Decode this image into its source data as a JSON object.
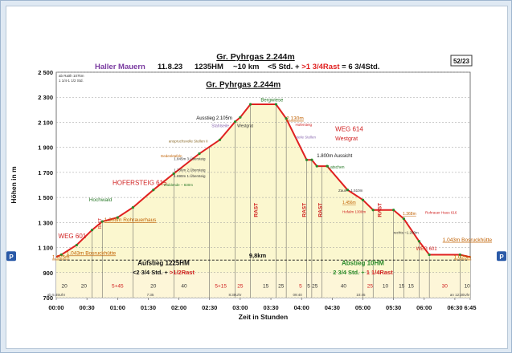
{
  "page_number": "52/23",
  "header": {
    "title": "Gr. Pyhrgas  2.244m",
    "group": "Haller Mauern",
    "date": "11.8.23",
    "hm": "1235HM",
    "dist": "~10 km",
    "time_prefix": "<5 Std. + ",
    "rast": ">1 3/4Rast",
    "time_suffix": " = 6 3/4Std."
  },
  "chart_data": {
    "type": "area",
    "title": "Gr. Pyhrgas 2.244m",
    "xlabel": "Zeit in Stunden",
    "ylabel": "Höhen in m",
    "xlim": [
      0,
      405
    ],
    "ylim": [
      700,
      2500
    ],
    "x_ticks": [
      {
        "t": 0,
        "label": "00:00"
      },
      {
        "t": 30,
        "label": "00:30"
      },
      {
        "t": 60,
        "label": "01:00"
      },
      {
        "t": 90,
        "label": "01:30"
      },
      {
        "t": 120,
        "label": "02:00"
      },
      {
        "t": 150,
        "label": "02:30"
      },
      {
        "t": 180,
        "label": "03:00"
      },
      {
        "t": 210,
        "label": "03:30"
      },
      {
        "t": 240,
        "label": "04:00"
      },
      {
        "t": 270,
        "label": "04:30"
      },
      {
        "t": 300,
        "label": "05:00"
      },
      {
        "t": 330,
        "label": "05:30"
      },
      {
        "t": 360,
        "label": "06:00"
      },
      {
        "t": 390,
        "label": "06:30"
      },
      {
        "t": 405,
        "label": "6:45"
      }
    ],
    "y_ticks": [
      {
        "v": 700,
        "label": "700"
      },
      {
        "v": 900,
        "label": "900"
      },
      {
        "v": 1100,
        "label": "1 100"
      },
      {
        "v": 1300,
        "label": "1 300"
      },
      {
        "v": 1500,
        "label": "1 500"
      },
      {
        "v": 1700,
        "label": "1 700"
      },
      {
        "v": 1900,
        "label": "1 900"
      },
      {
        "v": 2100,
        "label": "2 100"
      },
      {
        "v": 2300,
        "label": "2 300"
      },
      {
        "v": 2500,
        "label": "2 500"
      }
    ],
    "profile": [
      {
        "t": 0,
        "h": 1025
      },
      {
        "t": 5,
        "h": 1043
      },
      {
        "t": 20,
        "h": 1120
      },
      {
        "t": 35,
        "h": 1240
      },
      {
        "t": 45,
        "h": 1308
      },
      {
        "t": 60,
        "h": 1340
      },
      {
        "t": 75,
        "h": 1420
      },
      {
        "t": 95,
        "h": 1560
      },
      {
        "t": 115,
        "h": 1690
      },
      {
        "t": 140,
        "h": 1850
      },
      {
        "t": 160,
        "h": 1960
      },
      {
        "t": 175,
        "h": 2105
      },
      {
        "t": 180,
        "h": 2140
      },
      {
        "t": 190,
        "h": 2244
      },
      {
        "t": 215,
        "h": 2244
      },
      {
        "t": 225,
        "h": 2130
      },
      {
        "t": 245,
        "h": 1800
      },
      {
        "t": 250,
        "h": 1800
      },
      {
        "t": 255,
        "h": 1750
      },
      {
        "t": 265,
        "h": 1750
      },
      {
        "t": 285,
        "h": 1560
      },
      {
        "t": 300,
        "h": 1480
      },
      {
        "t": 310,
        "h": 1400
      },
      {
        "t": 330,
        "h": 1400
      },
      {
        "t": 340,
        "h": 1330
      },
      {
        "t": 355,
        "h": 1150
      },
      {
        "t": 365,
        "h": 1043
      },
      {
        "t": 395,
        "h": 1043
      },
      {
        "t": 405,
        "h": 1025
      }
    ],
    "legend": "none",
    "grid": true
  },
  "annotations": [
    {
      "t": 2,
      "h": 1175,
      "text": "WEG 601",
      "color": "#d02020",
      "size": 8
    },
    {
      "t": 10,
      "h": 1043,
      "text": "1.043m Bosruckhütte",
      "color": "#c06000",
      "size": 6.5,
      "u": true
    },
    {
      "t": 47,
      "h": 1308,
      "text": "1.308m Rohrauerhaus",
      "color": "#c06000",
      "size": 6.5,
      "u": true
    },
    {
      "t": 32,
      "h": 1470,
      "text": "Hochwald",
      "color": "#2a7a2a",
      "size": 6.5
    },
    {
      "t": 55,
      "h": 1600,
      "text": "HOFERSTEIG 615",
      "color": "#d02020",
      "size": 8
    },
    {
      "t": 102,
      "h": 1820,
      "text": "Gedenktafeln",
      "color": "#c06000",
      "size": 4.5
    },
    {
      "t": 110,
      "h": 1940,
      "text": "anspruchsvolle Stellen II",
      "color": "#8a6a2a",
      "size": 4.5
    },
    {
      "t": 115,
      "h": 1800,
      "text": "1.845m 3.Übersteig",
      "color": "#333333",
      "size": 4.5
    },
    {
      "t": 115,
      "h": 1710,
      "text": "1.736m 2.Übersteig",
      "color": "#333333",
      "size": 4.5
    },
    {
      "t": 115,
      "h": 1660,
      "text": "1.690m 1.Übersteig",
      "color": "#333333",
      "size": 4.5
    },
    {
      "t": 105,
      "h": 1590,
      "text": "Waldende ~ 830m",
      "color": "#2a7a2a",
      "size": 4.5
    },
    {
      "t": 137,
      "h": 2122,
      "text": "Ausstieg 2.105m",
      "color": "#111111",
      "size": 6
    },
    {
      "t": 152,
      "h": 2060,
      "text": "Stahlseile",
      "color": "#8a6ab0",
      "size": 5
    },
    {
      "t": 177,
      "h": 2060,
      "text": "Westgrat",
      "color": "#333333",
      "size": 5
    },
    {
      "t": 200,
      "h": 2265,
      "text": "Bergwiese",
      "color": "#2a7a2a",
      "size": 6
    },
    {
      "t": 225,
      "h": 2118,
      "text": "2.130m",
      "color": "#c06000",
      "size": 6.5,
      "u": true
    },
    {
      "t": 234,
      "h": 2070,
      "text": "Hofersteig",
      "color": "#d02020",
      "size": 4.5
    },
    {
      "t": 234,
      "h": 1970,
      "text": "steile Stellen",
      "color": "#8a6ab0",
      "size": 4.5
    },
    {
      "t": 273,
      "h": 2030,
      "text": "WEG 614",
      "color": "#d02020",
      "size": 8
    },
    {
      "t": 273,
      "h": 1955,
      "text": "Westgrat",
      "color": "#d02020",
      "size": 7
    },
    {
      "t": 255,
      "h": 1820,
      "text": "1.800m Aussicht",
      "color": "#111111",
      "size": 6
    },
    {
      "t": 266,
      "h": 1730,
      "text": "Latschen",
      "color": "#2a7a2a",
      "size": 5
    },
    {
      "t": 276,
      "h": 1545,
      "text": "Zaun ~ 1.510m",
      "color": "#333333",
      "size": 4.5
    },
    {
      "t": 280,
      "h": 1450,
      "text": "1.456m",
      "color": "#c06000",
      "size": 5,
      "u": true
    },
    {
      "t": 280,
      "h": 1375,
      "text": "Hofalm 1308m",
      "color": "#d02020",
      "size": 4.5
    },
    {
      "t": 339,
      "h": 1360,
      "text": "1.368m",
      "color": "#c06000",
      "size": 5,
      "u": true
    },
    {
      "t": 361,
      "h": 1370,
      "text": "Rohrauer Haus 616",
      "color": "#d02020",
      "size": 4.5
    },
    {
      "t": 330,
      "h": 1210,
      "text": "rechts ~1.200m",
      "color": "#333333",
      "size": 4.5
    },
    {
      "t": 378,
      "h": 1150,
      "text": "1.043m Bosruckhütte",
      "color": "#c06000",
      "size": 6.5,
      "u": true
    },
    {
      "t": 352,
      "h": 1078,
      "text": "WEG 601",
      "color": "#d02020",
      "size": 6
    },
    {
      "t": 389,
      "h": 1010,
      "text": "1.025m",
      "color": "#c06000",
      "size": 6.5,
      "u": true
    },
    {
      "t": -4,
      "h": 1010,
      "text": "1.025m",
      "color": "#c06000",
      "size": 6.5,
      "u": true
    },
    {
      "t": 44,
      "h": 1250,
      "text": "RAST",
      "color": "#d02020",
      "size": 5,
      "rot": true
    }
  ],
  "rast_labels": [
    {
      "t": 197,
      "text": "RAST"
    },
    {
      "t": 244,
      "text": "RAST"
    },
    {
      "t": 260,
      "text": "RAST"
    },
    {
      "t": 318,
      "text": "RAST"
    }
  ],
  "segment_dividers": [
    35,
    45,
    75,
    115,
    150,
    175,
    190,
    215,
    225,
    245,
    250,
    260,
    300,
    310,
    330,
    340,
    355,
    365,
    395
  ],
  "segment_labels": [
    {
      "t": 8,
      "text": "20",
      "color": "#333333"
    },
    {
      "t": 27,
      "text": "20",
      "color": "#333333"
    },
    {
      "t": 60,
      "text": "5+45",
      "color": "#d02020"
    },
    {
      "t": 95,
      "text": "20",
      "color": "#333333"
    },
    {
      "t": 125,
      "text": "40",
      "color": "#333333"
    },
    {
      "t": 161,
      "text": "5+15",
      "color": "#d02020"
    },
    {
      "t": 180,
      "text": "25",
      "color": "#d02020"
    },
    {
      "t": 205,
      "text": "15",
      "color": "#333333"
    },
    {
      "t": 220,
      "text": "25",
      "color": "#333333"
    },
    {
      "t": 239,
      "text": "5",
      "color": "#d02020"
    },
    {
      "t": 247,
      "text": "5",
      "color": "#333333"
    },
    {
      "t": 253,
      "text": "25",
      "color": "#333333"
    },
    {
      "t": 281,
      "text": "40",
      "color": "#333333"
    },
    {
      "t": 307,
      "text": "25",
      "color": "#d02020"
    },
    {
      "t": 322,
      "text": "10",
      "color": "#333333"
    },
    {
      "t": 338,
      "text": "15",
      "color": "#333333"
    },
    {
      "t": 347,
      "text": "15",
      "color": "#333333"
    },
    {
      "t": 380,
      "text": "30",
      "color": "#d02020"
    },
    {
      "t": 402,
      "text": "10",
      "color": "#333333"
    }
  ],
  "small_times": [
    {
      "t": 0,
      "text": "ab 5:45Uhr"
    },
    {
      "t": 92,
      "text": "7:35"
    },
    {
      "t": 175,
      "text": "8:35Uhr"
    },
    {
      "t": 236,
      "text": "09:40"
    },
    {
      "t": 298,
      "text": "10:45"
    },
    {
      "t": 395,
      "text": "an 12:30Uhr"
    }
  ],
  "corner_notes": [
    "ab Raith 107km",
    "1 1/4-1 1/2 Std."
  ],
  "summary": {
    "ascent": "Aufstieg 1225HM",
    "ascent_time": "<2 3/4 Std. + ",
    "ascent_rast": ">1/2Rast",
    "descent": "Abstieg 10HM",
    "descent_time": "2 3/4 Std. + ",
    "descent_rast": "1 1/4Rast",
    "distance": "9,8km"
  },
  "parking": "P",
  "colors": {
    "profile": "#e02020",
    "fill": "#fbf7cf",
    "marker": "#2a8a2a",
    "ascent_green": "#2a8a2a",
    "rast_red": "#d02020",
    "purple": "#7a3aa0"
  }
}
